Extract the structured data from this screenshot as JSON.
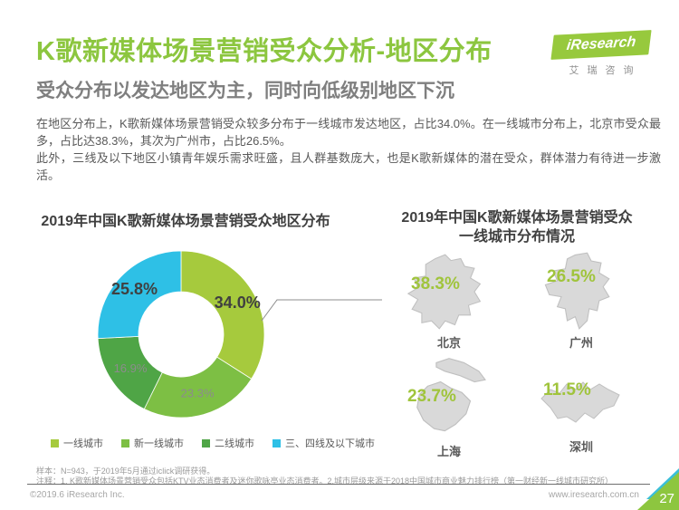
{
  "header": {
    "title": "K歌新媒体场景营销受众分析-地区分布",
    "subtitle": "受众分布以发达地区为主，同时向低级别地区下沉",
    "logo_brand": "iResearch",
    "logo_brand_cn": "艾瑞咨询",
    "brand_green": "#8CC63F"
  },
  "body": {
    "paragraph1": "在地区分布上，K歌新媒体场景营销受众较多分布于一线城市发达地区，占比34.0%。在一线城市分布上，北京市受众最多，占比达38.3%，其次为广州市，占比26.5%。",
    "paragraph2": "此外，三线及以下地区小镇青年娱乐需求旺盛，且人群基数庞大，也是K歌新媒体的潜在受众，群体潜力有待进一步激活。"
  },
  "chart_data": [
    {
      "type": "pie",
      "donut": true,
      "title": "2019年中国K歌新媒体场景营销受众地区分布",
      "start_angle_deg": -90,
      "direction": "clockwise",
      "legend_position": "bottom",
      "slices": [
        {
          "label": "一线城市",
          "value": 34.0,
          "display": "34.0%",
          "color": "#A6CA3D",
          "emphasized": true
        },
        {
          "label": "新一线城市",
          "value": 23.3,
          "display": "23.3%",
          "color": "#7DBF44",
          "emphasized": false
        },
        {
          "label": "二线城市",
          "value": 16.9,
          "display": "16.9%",
          "color": "#4FA546",
          "emphasized": false
        },
        {
          "label": "三、四线及以下城市",
          "value": 25.8,
          "display": "25.8%",
          "color": "#2EC0E6",
          "emphasized": true
        }
      ]
    },
    {
      "type": "map-stats",
      "title_line1": "2019年中国K歌新媒体场景营销受众",
      "title_line2": "一线城市分布情况",
      "value_color": "#A0C43C",
      "map_fill": "#D9D9D9",
      "cities": [
        {
          "name": "北京",
          "value": 38.3,
          "display": "38.3%"
        },
        {
          "name": "广州",
          "value": 26.5,
          "display": "26.5%"
        },
        {
          "name": "上海",
          "value": 23.7,
          "display": "23.7%"
        },
        {
          "name": "深圳",
          "value": 11.5,
          "display": "11.5%"
        }
      ]
    }
  ],
  "footnotes": {
    "sample": "样本：N=943，于2019年5月通过iclick调研获得。",
    "note": "注释：1. K歌新媒体场景营销受众包括KTV业态消费者及迷你歌咏亭业态消费者。2.城市层级来源于2018中国城市商业魅力排行榜（第一财经新一线城市研究所）"
  },
  "footer": {
    "copyright": "©2019.6 iResearch Inc.",
    "website": "www.iresearch.com.cn",
    "page_number": "27"
  }
}
